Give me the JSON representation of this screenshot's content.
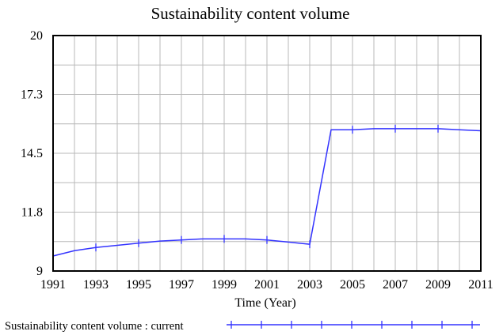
{
  "chart_data": {
    "type": "line",
    "title": "Sustainability content volume",
    "xlabel": "Time (Year)",
    "ylabel": "",
    "xlim": [
      1991,
      2011
    ],
    "ylim": [
      9,
      20
    ],
    "x_ticks": [
      "1991",
      "1993",
      "1995",
      "1997",
      "1999",
      "2001",
      "2003",
      "2005",
      "2007",
      "2009",
      "2011"
    ],
    "y_ticks": [
      "20",
      "17.3",
      "14.5",
      "11.8",
      "9"
    ],
    "grid": true,
    "legend_position": "bottom-left",
    "series": [
      {
        "name": "Sustainability content volume : current",
        "color": "#3333ff",
        "x": [
          1991,
          1992,
          1993,
          1994,
          1995,
          1996,
          1997,
          1998,
          1999,
          2000,
          2001,
          2002,
          2003,
          2004,
          2005,
          2006,
          2007,
          2008,
          2009,
          2010,
          2011
        ],
        "y": [
          9.7,
          9.95,
          10.1,
          10.2,
          10.3,
          10.4,
          10.45,
          10.5,
          10.5,
          10.5,
          10.45,
          10.35,
          10.25,
          15.6,
          15.6,
          15.65,
          15.65,
          15.65,
          15.65,
          15.6,
          15.55
        ]
      }
    ]
  }
}
